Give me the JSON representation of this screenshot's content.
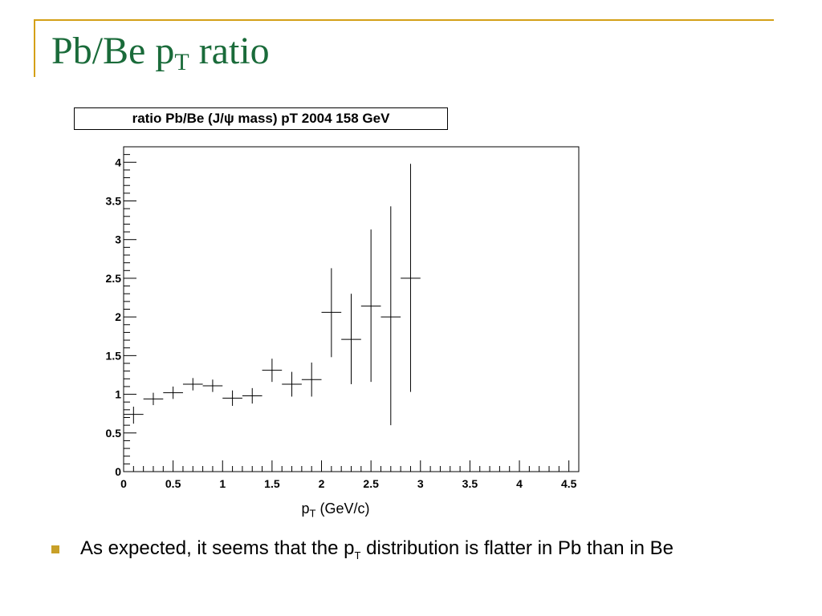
{
  "slide": {
    "title_main": "Pb/Be p",
    "title_sub": "T",
    "title_rest": " ratio",
    "accent_color": "#d4a017",
    "title_color": "#1a6b3a"
  },
  "bullet": {
    "text_before": "As expected, it seems that the p",
    "text_sub": "T",
    "text_after": " distribution is flatter in Pb than in Be",
    "bullet_color": "#c8a028"
  },
  "chart_data": {
    "type": "scatter",
    "title": "ratio Pb/Be (J/ψ mass) pT 2004 158 GeV",
    "xlabel_main": "p",
    "xlabel_sub": "T",
    "xlabel_unit": " (GeV/c)",
    "ylabel": "",
    "xlim": [
      0,
      4.6
    ],
    "ylim": [
      0,
      4.2
    ],
    "x_ticks": [
      "0",
      "0.5",
      "1",
      "1.5",
      "2",
      "2.5",
      "3",
      "3.5",
      "4",
      "4.5"
    ],
    "y_ticks": [
      "0",
      "0.5",
      "1",
      "1.5",
      "2",
      "2.5",
      "3",
      "3.5",
      "4"
    ],
    "grid": false,
    "series": [
      {
        "x": [
          0.1,
          0.3,
          0.5,
          0.7,
          0.9,
          1.1,
          1.3,
          1.5,
          1.7,
          1.9,
          2.1,
          2.3,
          2.5,
          2.7,
          2.9
        ],
        "y": [
          0.74,
          0.94,
          1.02,
          1.13,
          1.11,
          0.95,
          0.98,
          1.31,
          1.13,
          1.19,
          2.06,
          1.71,
          2.14,
          2.0,
          2.5
        ],
        "x_err": [
          0.1,
          0.1,
          0.1,
          0.1,
          0.1,
          0.1,
          0.1,
          0.1,
          0.1,
          0.1,
          0.1,
          0.1,
          0.1,
          0.1,
          0.1
        ],
        "y_err_low": [
          0.12,
          0.08,
          0.08,
          0.08,
          0.08,
          0.1,
          0.1,
          0.15,
          0.16,
          0.22,
          0.58,
          0.58,
          0.98,
          1.4,
          1.47
        ],
        "y_err_high": [
          0.1,
          0.08,
          0.08,
          0.08,
          0.08,
          0.1,
          0.1,
          0.15,
          0.16,
          0.22,
          0.57,
          0.59,
          0.99,
          1.43,
          1.48
        ],
        "color": "#000000"
      }
    ]
  }
}
